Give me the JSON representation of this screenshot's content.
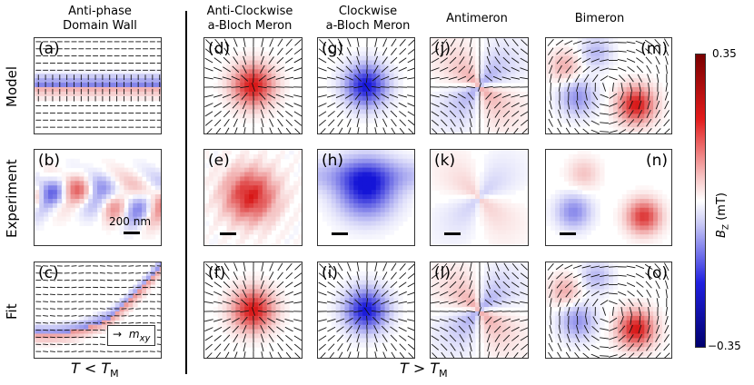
{
  "figure": {
    "columns": [
      {
        "id": "dw",
        "title_line1": "Anti-phase",
        "title_line2": "Domain Wall"
      },
      {
        "id": "acw",
        "title_line1": "Anti-Clockwise",
        "title_line2": "a-Bloch Meron"
      },
      {
        "id": "cw",
        "title_line1": "Clockwise",
        "title_line2": "a-Bloch Meron"
      },
      {
        "id": "am",
        "title_line1": "Antimeron",
        "title_line2": ""
      },
      {
        "id": "bm",
        "title_line1": "Bimeron",
        "title_line2": ""
      }
    ],
    "rows": [
      "Model",
      "Experiment",
      "Fit"
    ],
    "panels": [
      {
        "label": "(a)",
        "kind": "wall-model"
      },
      {
        "label": "(b)",
        "kind": "wall-exp"
      },
      {
        "label": "(c)",
        "kind": "wall-fit"
      },
      {
        "label": "(d)",
        "kind": "red-meron"
      },
      {
        "label": "(e)",
        "kind": "red-exp"
      },
      {
        "label": "(f)",
        "kind": "red-meron"
      },
      {
        "label": "(g)",
        "kind": "blue-meron"
      },
      {
        "label": "(h)",
        "kind": "blue-exp"
      },
      {
        "label": "(i)",
        "kind": "blue-meron"
      },
      {
        "label": "(j)",
        "kind": "antimeron"
      },
      {
        "label": "(k)",
        "kind": "antimeron-exp"
      },
      {
        "label": "(l)",
        "kind": "antimeron"
      },
      {
        "label": "(m)",
        "kind": "bimeron"
      },
      {
        "label": "(n)",
        "kind": "bimeron-exp"
      },
      {
        "label": "(o)",
        "kind": "bimeron"
      }
    ],
    "scalebar_label": "200 nm",
    "legend_arrow": "→",
    "legend_symbol": "m",
    "legend_sub": "xy",
    "bottom_left": {
      "T": "T",
      "rel": "<",
      "TM": "T",
      "sub": "M"
    },
    "bottom_right": {
      "T": "T",
      "rel": ">",
      "TM": "T",
      "sub": "M"
    },
    "colorbar": {
      "max": "0.35",
      "min": "−0.35",
      "label_main": "B",
      "label_sub": "Z",
      "label_unit": " (mT)",
      "colors": {
        "max": "#7a0000",
        "mid": "#ffffff",
        "min": "#00006e"
      }
    }
  }
}
